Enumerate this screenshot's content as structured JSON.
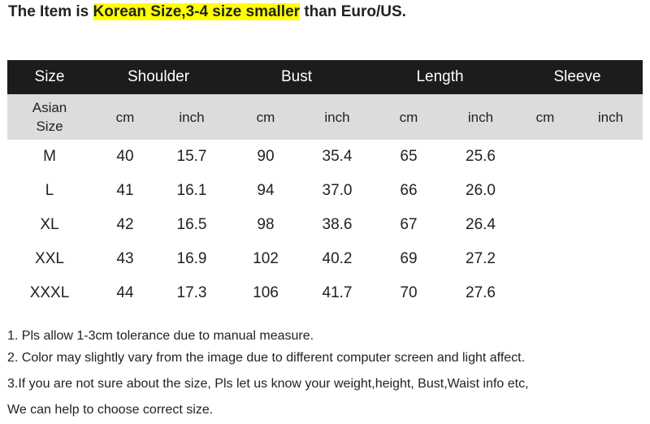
{
  "headline": {
    "prefix": "The Item is ",
    "highlight": "Korean Size,3-4 size smaller",
    "suffix": " than Euro/US."
  },
  "highlight_color": "#ffff00",
  "table": {
    "headers": [
      "Size",
      "Shoulder",
      "Bust",
      "Length",
      "Sleeve"
    ],
    "asian_size_label_1": "Asian",
    "asian_size_label_2": "Size",
    "units": [
      "cm",
      "inch",
      "cm",
      "inch",
      "cm",
      "inch",
      "cm",
      "inch"
    ],
    "rows": [
      [
        "M",
        "40",
        "15.7",
        "90",
        "35.4",
        "65",
        "25.6",
        "",
        ""
      ],
      [
        "L",
        "41",
        "16.1",
        "94",
        "37.0",
        "66",
        "26.0",
        "",
        ""
      ],
      [
        "XL",
        "42",
        "16.5",
        "98",
        "38.6",
        "67",
        "26.4",
        "",
        ""
      ],
      [
        "XXL",
        "43",
        "16.9",
        "102",
        "40.2",
        "69",
        "27.2",
        "",
        ""
      ],
      [
        "XXXL",
        "44",
        "17.3",
        "106",
        "41.7",
        "70",
        "27.6",
        "",
        ""
      ]
    ]
  },
  "notes": [
    "1. Pls allow 1-3cm tolerance due to manual measure.",
    "2. Color may slightly vary from the image due to different computer screen and light affect.",
    "3.If you are not sure about the size, Pls let us know your weight,height, Bust,Waist info etc,",
    "We can help to choose correct size."
  ]
}
